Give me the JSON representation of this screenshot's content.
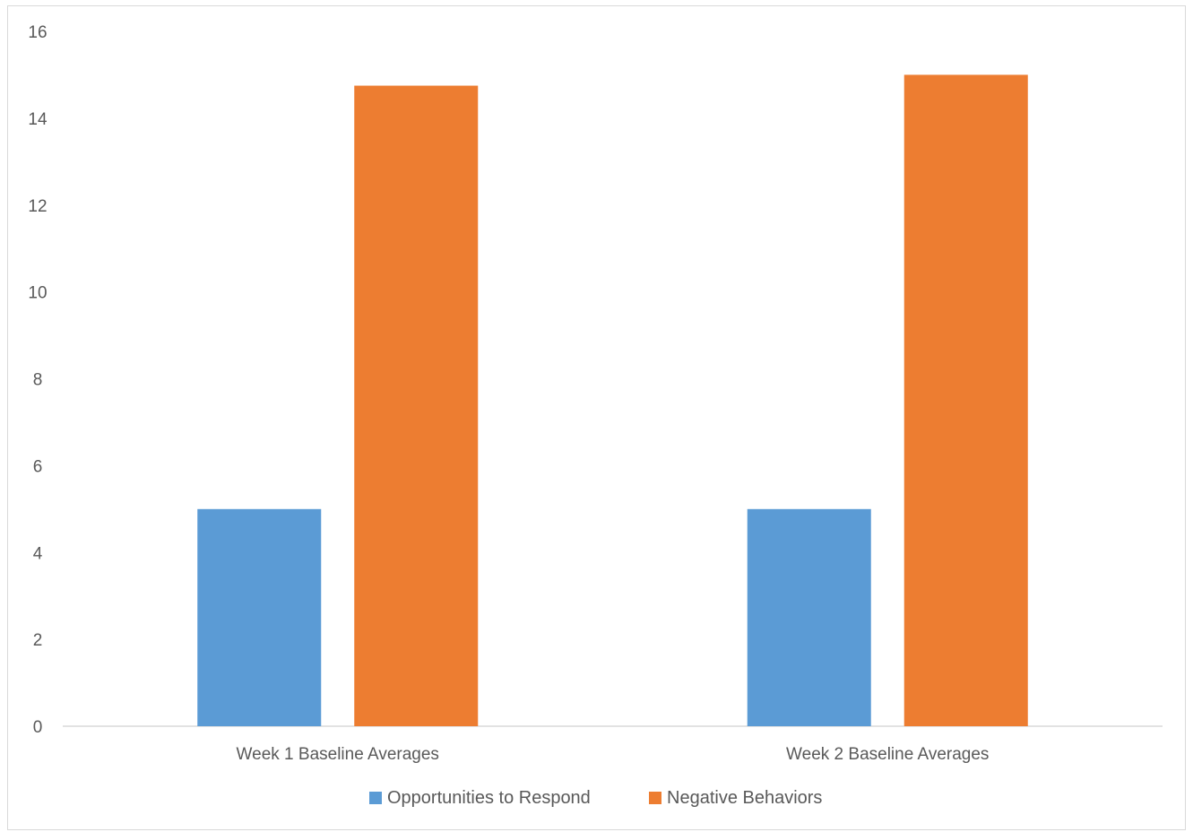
{
  "chart_data": {
    "type": "bar",
    "title": "",
    "xlabel": "",
    "ylabel": "",
    "categories": [
      "Week 1 Baseline Averages",
      "Week 2 Baseline Averages"
    ],
    "series": [
      {
        "name": "Opportunities to Respond",
        "color": "#5b9bd5",
        "values": [
          5,
          5
        ]
      },
      {
        "name": "Negative Behaviors",
        "color": "#ed7d31",
        "values": [
          14.75,
          15
        ]
      }
    ],
    "ylim": [
      0,
      16
    ],
    "yticks": [
      0,
      2,
      4,
      6,
      8,
      10,
      12,
      14,
      16
    ],
    "grid": false,
    "legend_position": "bottom"
  }
}
